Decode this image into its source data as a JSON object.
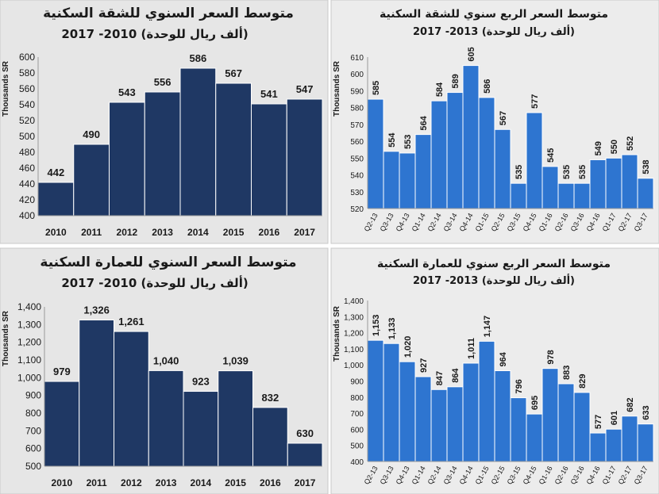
{
  "chart_data": [
    {
      "type": "bar",
      "title": "متوسط السعر السنوي للشقة السكنية",
      "subtitle": "(ألف ريال للوحدة)  2010- 2017",
      "ylabel": "Thousands SR",
      "ylim": [
        400,
        600
      ],
      "yticks": [
        "400",
        "420",
        "440",
        "460",
        "480",
        "500",
        "520",
        "540",
        "560",
        "580",
        "600"
      ],
      "categories": [
        "2010",
        "2011",
        "2012",
        "2013",
        "2014",
        "2015",
        "2016",
        "2017"
      ],
      "values": [
        442,
        490,
        543,
        556,
        586,
        567,
        541,
        547
      ],
      "value_labels": [
        "442",
        "490",
        "543",
        "556",
        "586",
        "567",
        "541",
        "547"
      ],
      "bar_color": "#1f3864",
      "panel_color": "#e6e6e6",
      "grid": false,
      "legend": "none"
    },
    {
      "type": "bar",
      "title": "متوسط السعر الربع سنوي للشقة السكنية",
      "subtitle": "(ألف ريال للوحدة) 2013- 2017",
      "ylabel": "Thousands SR",
      "ylim": [
        520,
        610
      ],
      "yticks": [
        "520",
        "530",
        "540",
        "550",
        "560",
        "570",
        "580",
        "590",
        "600",
        "610"
      ],
      "categories": [
        "Q2-13",
        "Q3-13",
        "Q4-13",
        "Q1-14",
        "Q2-14",
        "Q3-14",
        "Q4-14",
        "Q1-15",
        "Q2-15",
        "Q3-15",
        "Q4-15",
        "Q1-16",
        "Q2-16",
        "Q3-16",
        "Q4-16",
        "Q1-17",
        "Q2-17",
        "Q3-17"
      ],
      "values": [
        585,
        554,
        553,
        564,
        584,
        589,
        605,
        586,
        567,
        535,
        577,
        545,
        535,
        535,
        549,
        550,
        552,
        538
      ],
      "value_labels": [
        "585",
        "554",
        "553",
        "564",
        "584",
        "589",
        "605",
        "586",
        "567",
        "535",
        "577",
        "545",
        "535",
        "535",
        "549",
        "550",
        "552",
        "538"
      ],
      "bar_color": "#2e75d0",
      "panel_color": "#ececec",
      "grid": false,
      "legend": "none"
    },
    {
      "type": "bar",
      "title": "متوسط السعر السنوي للعمارة السكنية",
      "subtitle": "(ألف ريال للوحدة)  2010- 2017",
      "ylabel": "Thousands SR",
      "ylim": [
        500,
        1400
      ],
      "yticks": [
        "500",
        "600",
        "700",
        "800",
        "900",
        "1,000",
        "1,100",
        "1,200",
        "1,300",
        "1,400"
      ],
      "categories": [
        "2010",
        "2011",
        "2012",
        "2013",
        "2014",
        "2015",
        "2016",
        "2017"
      ],
      "values": [
        979,
        1326,
        1261,
        1040,
        923,
        1039,
        832,
        630
      ],
      "value_labels": [
        "979",
        "1,326",
        "1,261",
        "1,040",
        "923",
        "1,039",
        "832",
        "630"
      ],
      "bar_color": "#1f3864",
      "panel_color": "#e6e6e6",
      "grid": false,
      "legend": "none"
    },
    {
      "type": "bar",
      "title": "متوسط السعر الربع سنوي للعمارة السكنية",
      "subtitle": "(ألف ريال للوحدة) 2013- 2017",
      "ylabel": "Thousands SR",
      "ylim": [
        400,
        1400
      ],
      "yticks": [
        "400",
        "500",
        "600",
        "700",
        "800",
        "900",
        "1,000",
        "1,100",
        "1,200",
        "1,300",
        "1,400"
      ],
      "categories": [
        "Q2-13",
        "Q3-13",
        "Q4-13",
        "Q1-14",
        "Q2-14",
        "Q3-14",
        "Q4-14",
        "Q1-15",
        "Q2-15",
        "Q3-15",
        "Q4-15",
        "Q1-16",
        "Q2-16",
        "Q3-16",
        "Q4-16",
        "Q1-17",
        "Q2-17",
        "Q3-17"
      ],
      "values": [
        1153,
        1133,
        1020,
        927,
        847,
        864,
        1011,
        1147,
        964,
        796,
        695,
        978,
        883,
        829,
        577,
        601,
        682,
        633
      ],
      "value_labels": [
        "1,153",
        "1,133",
        "1,020",
        "927",
        "847",
        "864",
        "1,011",
        "1,147",
        "964",
        "796",
        "695",
        "978",
        "883",
        "829",
        "577",
        "601",
        "682",
        "633"
      ],
      "bar_color": "#2e75d0",
      "panel_color": "#ececec",
      "grid": false,
      "legend": "none"
    }
  ]
}
